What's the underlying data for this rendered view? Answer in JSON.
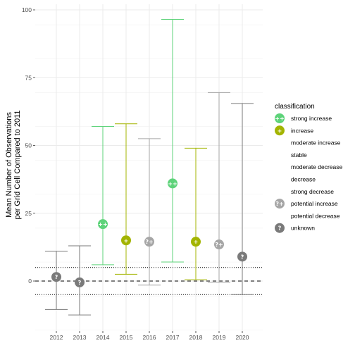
{
  "chart_data": {
    "type": "errorbar",
    "ylabel_lines": [
      "Mean Number of Observations",
      "per Grid Cell Compared to 2011"
    ],
    "xlabel": "",
    "categories": [
      "2012",
      "2013",
      "2014",
      "2015",
      "2016",
      "2017",
      "2018",
      "2019",
      "2020"
    ],
    "ylim": [
      -18,
      102
    ],
    "yticks": [
      0,
      25,
      50,
      75,
      100
    ],
    "grid": true,
    "legend_position": "right",
    "reference_lines": {
      "dashed": [
        0
      ],
      "dotted": [
        5,
        -5
      ]
    },
    "points": [
      {
        "x": "2012",
        "y": 1.5,
        "ymin": -10.5,
        "ymax": 11,
        "classification": "unknown"
      },
      {
        "x": "2013",
        "y": -0.5,
        "ymin": -12.5,
        "ymax": 13,
        "classification": "unknown"
      },
      {
        "x": "2014",
        "y": 21,
        "ymin": 6,
        "ymax": 57,
        "classification": "strong increase"
      },
      {
        "x": "2015",
        "y": 15,
        "ymin": 2.5,
        "ymax": 58,
        "classification": "increase"
      },
      {
        "x": "2016",
        "y": 14.5,
        "ymin": -1.5,
        "ymax": 52.5,
        "classification": "potential increase"
      },
      {
        "x": "2017",
        "y": 36,
        "ymin": 7,
        "ymax": 96.5,
        "classification": "strong increase"
      },
      {
        "x": "2018",
        "y": 14.5,
        "ymin": 0.5,
        "ymax": 49,
        "classification": "increase"
      },
      {
        "x": "2019",
        "y": 13.5,
        "ymin": -0.5,
        "ymax": 69.5,
        "classification": "potential increase"
      },
      {
        "x": "2020",
        "y": 9,
        "ymin": -5,
        "ymax": 65.5,
        "classification": "unknown"
      }
    ],
    "legend": {
      "title": "classification",
      "entries": [
        {
          "label": "strong increase",
          "color": "#5ed37a",
          "glyph": "++",
          "shown": true
        },
        {
          "label": "increase",
          "color": "#a3b400",
          "glyph": "+",
          "shown": true
        },
        {
          "label": "moderate increase",
          "color": "",
          "glyph": "",
          "shown": false
        },
        {
          "label": "stable",
          "color": "",
          "glyph": "",
          "shown": false
        },
        {
          "label": "moderate decrease",
          "color": "",
          "glyph": "",
          "shown": false
        },
        {
          "label": "decrease",
          "color": "",
          "glyph": "",
          "shown": false
        },
        {
          "label": "strong decrease",
          "color": "",
          "glyph": "",
          "shown": false
        },
        {
          "label": "potential increase",
          "color": "#a6a6a6",
          "glyph": "?+",
          "shown": true
        },
        {
          "label": "potential decrease",
          "color": "",
          "glyph": "",
          "shown": false
        },
        {
          "label": "unknown",
          "color": "#7a7a7a",
          "glyph": "?",
          "shown": true
        }
      ]
    }
  }
}
